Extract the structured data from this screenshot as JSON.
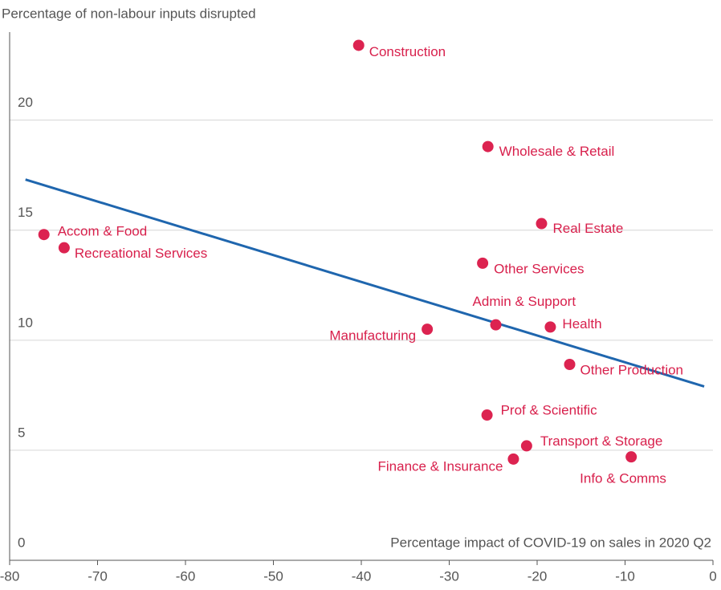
{
  "chart_data": {
    "type": "scatter",
    "y_label": "Percentage of non-labour inputs disrupted",
    "x_label": "Percentage impact of COVID-19 on sales in 2020 Q2",
    "series": [
      {
        "color": "#dc2350",
        "labels": [
          "Construction",
          "Wholesale & Retail",
          "Real Estate",
          "Accom & Food",
          "Recreational Services",
          "Other Services",
          "Admin & Support",
          "Health",
          "Manufacturing",
          "Other Production",
          "Prof & Scientific",
          "Transport & Storage",
          "Finance & Insurance",
          "Info & Comms"
        ],
        "x": [
          -40.3,
          -25.6,
          -19.5,
          -76.1,
          -73.8,
          -26.2,
          -24.7,
          -18.5,
          -32.5,
          -16.3,
          -25.7,
          -21.2,
          -22.7,
          -9.3
        ],
        "values": [
          23.4,
          18.8,
          15.3,
          14.8,
          14.2,
          13.5,
          10.7,
          10.6,
          10.5,
          8.9,
          6.6,
          5.2,
          4.6,
          4.7
        ]
      }
    ],
    "trend_line": {
      "color": "#1f66ae",
      "x": [
        -78.2,
        -1.0
      ],
      "values": [
        17.3,
        7.9
      ]
    },
    "xlim": [
      -80,
      0
    ],
    "xticks": [
      -80,
      -70,
      -60,
      -50,
      -40,
      -30,
      -20,
      -10,
      0
    ],
    "ylim": [
      0,
      24
    ],
    "yticks": [
      0,
      5,
      10,
      15,
      20
    ],
    "grid": true
  }
}
